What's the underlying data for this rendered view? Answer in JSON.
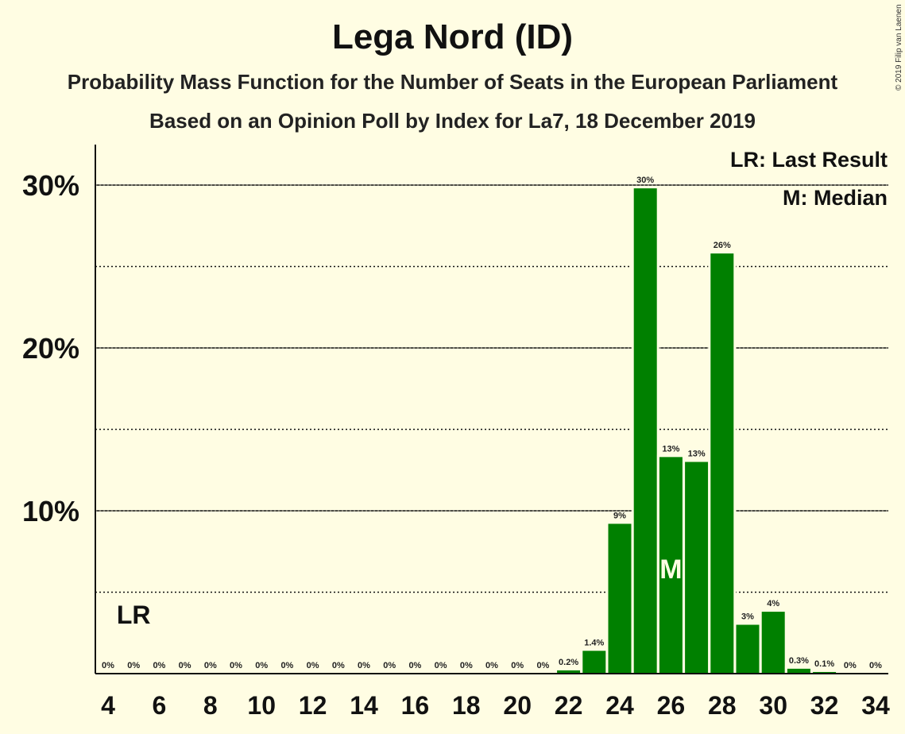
{
  "title": "Lega Nord (ID)",
  "subtitle1": "Probability Mass Function for the Number of Seats in the European Parliament",
  "subtitle2": "Based on an Opinion Poll by Index for La7, 18 December 2019",
  "copyright": "© 2019 Filip van Laenen",
  "legend": {
    "lr": "LR: Last Result",
    "m": "M: Median"
  },
  "markers": {
    "lr_label": "LR",
    "lr_seat": 5,
    "median_label": "M",
    "median_seat": 26
  },
  "colors": {
    "background": "#fffde3",
    "bar": "#008000"
  },
  "chart_data": {
    "type": "bar",
    "x": [
      4,
      5,
      6,
      7,
      8,
      9,
      10,
      11,
      12,
      13,
      14,
      15,
      16,
      17,
      18,
      19,
      20,
      21,
      22,
      23,
      24,
      25,
      26,
      27,
      28,
      29,
      30,
      31,
      32,
      33,
      34
    ],
    "values": [
      0,
      0,
      0,
      0,
      0,
      0,
      0,
      0,
      0,
      0,
      0,
      0,
      0,
      0,
      0,
      0,
      0,
      0,
      0.2,
      1.4,
      9.2,
      29.8,
      13.3,
      13.0,
      25.8,
      3.0,
      3.8,
      0.3,
      0.1,
      0,
      0
    ],
    "labels": [
      "0%",
      "0%",
      "0%",
      "0%",
      "0%",
      "0%",
      "0%",
      "0%",
      "0%",
      "0%",
      "0%",
      "0%",
      "0%",
      "0%",
      "0%",
      "0%",
      "0%",
      "0%",
      "0.2%",
      "1.4%",
      "9%",
      "30%",
      "13%",
      "13%",
      "26%",
      "3%",
      "4%",
      "0.3%",
      "0.1%",
      "0%",
      "0%"
    ],
    "x_ticks": [
      4,
      6,
      8,
      10,
      12,
      14,
      16,
      18,
      20,
      22,
      24,
      26,
      28,
      30,
      32,
      34
    ],
    "y_ticks": [
      {
        "value": 10,
        "label": "10%"
      },
      {
        "value": 20,
        "label": "20%"
      },
      {
        "value": 30,
        "label": "30%"
      }
    ],
    "ylim": [
      0,
      32
    ],
    "grid": "solid at 10% steps, dotted at 5% steps"
  }
}
